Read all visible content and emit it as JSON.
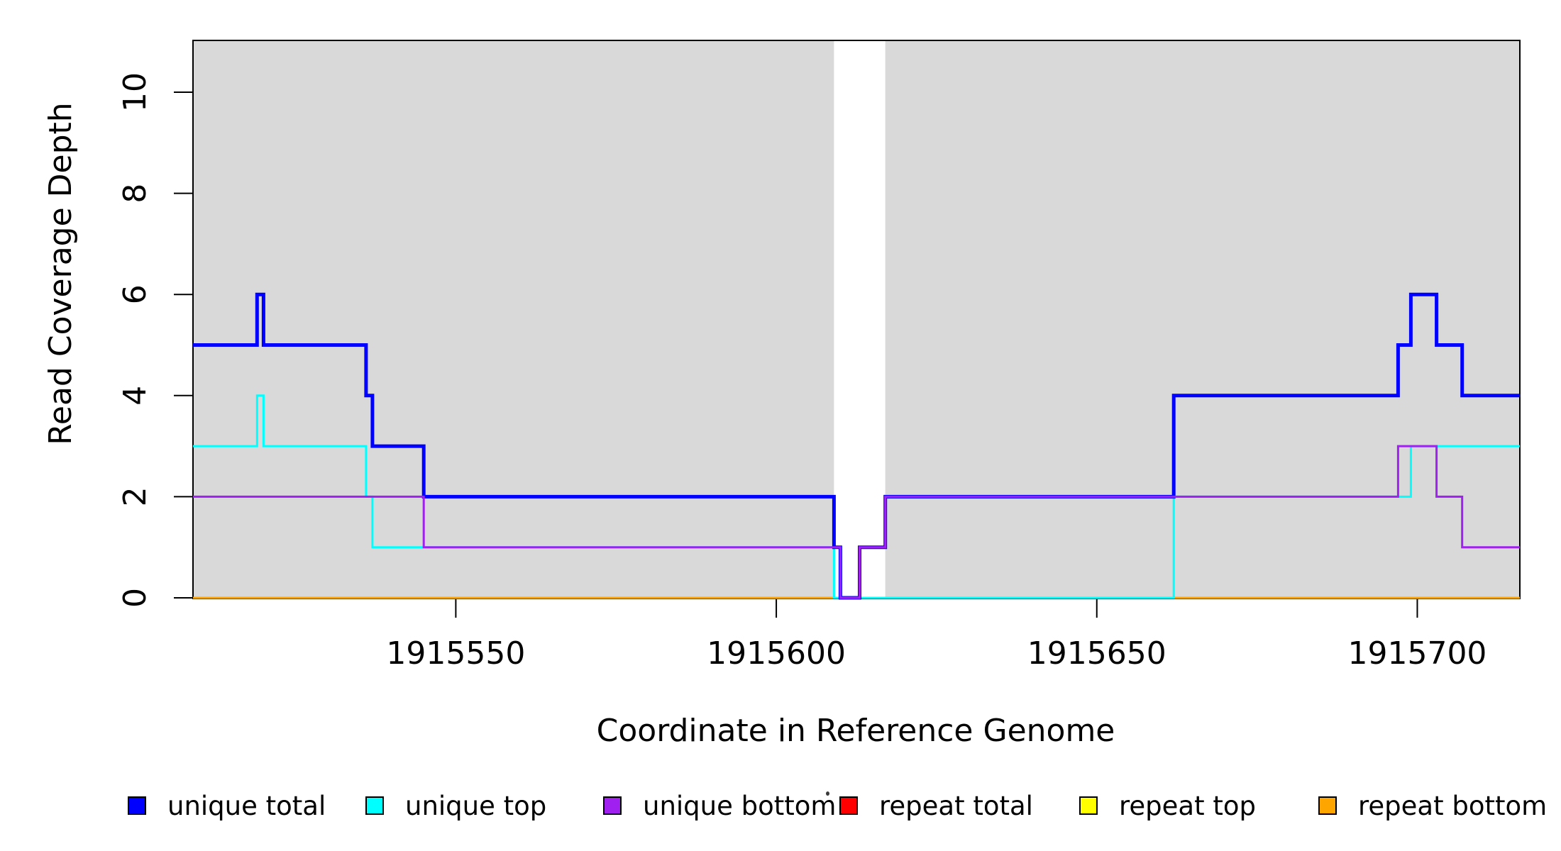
{
  "chart_data": {
    "type": "line",
    "subtype": "step",
    "title": "",
    "xlabel": "Coordinate in Reference Genome",
    "ylabel": "Read Coverage Depth",
    "xlim": [
      1915509,
      1915716
    ],
    "ylim": [
      0,
      11
    ],
    "x_ticks": [
      "1915550",
      "1915600",
      "1915650",
      "1915700"
    ],
    "x_tick_values": [
      1915550,
      1915600,
      1915650,
      1915700
    ],
    "y_ticks": [
      "0",
      "2",
      "4",
      "6",
      "8",
      "10"
    ],
    "y_tick_values": [
      0,
      2,
      4,
      6,
      8,
      10
    ],
    "grid": false,
    "plot_background_color": "#D9D9D9",
    "gap_band": {
      "x_start": 1915609,
      "x_end": 1915617,
      "fill": "#FFFFFF"
    },
    "axis_color": "#000000",
    "series": [
      {
        "name": "unique total",
        "color": "#0000FF",
        "line_width": 5,
        "steps": [
          [
            1915509,
            5
          ],
          [
            1915519,
            6
          ],
          [
            1915520,
            5
          ],
          [
            1915536,
            4
          ],
          [
            1915537,
            3
          ],
          [
            1915545,
            2
          ],
          [
            1915609,
            1
          ],
          [
            1915610,
            0
          ],
          [
            1915613,
            1
          ],
          [
            1915617,
            2
          ],
          [
            1915662,
            4
          ],
          [
            1915697,
            5
          ],
          [
            1915699,
            6
          ],
          [
            1915703,
            5
          ],
          [
            1915707,
            4
          ]
        ]
      },
      {
        "name": "unique top",
        "color": "#00FFFF",
        "line_width": 3,
        "steps": [
          [
            1915509,
            3
          ],
          [
            1915519,
            4
          ],
          [
            1915520,
            3
          ],
          [
            1915536,
            2
          ],
          [
            1915537,
            1
          ],
          [
            1915609,
            0
          ],
          [
            1915662,
            2
          ],
          [
            1915699,
            3
          ]
        ]
      },
      {
        "name": "unique bottom",
        "color": "#A020F0",
        "line_width": 3,
        "steps": [
          [
            1915509,
            2
          ],
          [
            1915545,
            1
          ],
          [
            1915610,
            0
          ],
          [
            1915613,
            1
          ],
          [
            1915617,
            2
          ],
          [
            1915697,
            3
          ],
          [
            1915703,
            2
          ],
          [
            1915707,
            1
          ]
        ]
      },
      {
        "name": "repeat total",
        "color": "#FF0000",
        "line_width": 3,
        "steps": [
          [
            1915509,
            0
          ]
        ]
      },
      {
        "name": "repeat top",
        "color": "#FFFF00",
        "line_width": 3,
        "steps": [
          [
            1915509,
            0
          ]
        ]
      },
      {
        "name": "repeat bottom",
        "color": "#FFA500",
        "line_width": 3,
        "steps": [
          [
            1915509,
            0
          ]
        ]
      }
    ],
    "draw_order": [
      "repeat total",
      "repeat top",
      "repeat bottom",
      "unique top",
      "unique total",
      "unique bottom"
    ],
    "legend": {
      "position": "bottom",
      "items": [
        {
          "label": "unique total",
          "color": "#0000FF"
        },
        {
          "label": "unique top",
          "color": "#00FFFF"
        },
        {
          "label": "unique bottom",
          "color": "#A020F0"
        },
        {
          "label": "repeat total",
          "color": "#FF0000"
        },
        {
          "label": "repeat top",
          "color": "#FFFF00"
        },
        {
          "label": "repeat bottom",
          "color": "#FFA500"
        }
      ],
      "stray_mark": "."
    }
  }
}
